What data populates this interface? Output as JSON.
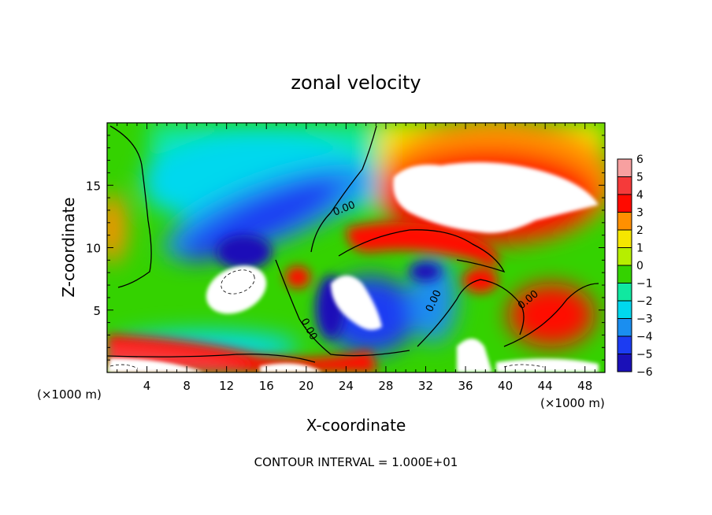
{
  "chart_data": {
    "type": "heatmap",
    "title": "zonal velocity",
    "xlabel": "X-coordinate",
    "ylabel": "Z-coordinate",
    "x_unit_left": "(×1000 m)",
    "x_unit_right": "(×1000 m)",
    "xlim": [
      0,
      50
    ],
    "ylim": [
      0,
      20
    ],
    "x_ticks": [
      4,
      8,
      12,
      16,
      20,
      24,
      28,
      32,
      36,
      40,
      44,
      48
    ],
    "y_ticks": [
      5,
      10,
      15
    ],
    "footer": "CONTOUR INTERVAL = 1.000E+01",
    "contour_labels": [
      "0.00",
      "0.00",
      "0.00",
      "0.00"
    ],
    "colorbar": {
      "levels": [
        6,
        5,
        4,
        3,
        2,
        1,
        0,
        -1,
        -2,
        -3,
        -4,
        -5,
        -6
      ],
      "colors": [
        "#f7a0a0",
        "#f53a3a",
        "#ff0a00",
        "#ff9000",
        "#f5e600",
        "#b6ee00",
        "#34d200",
        "#10e8a0",
        "#00d8ee",
        "#1a8ef0",
        "#1c3cf2",
        "#1a10b8",
        "#7a008a"
      ]
    },
    "saturation_color": "#ffffff",
    "grid": false,
    "legend": "right"
  }
}
